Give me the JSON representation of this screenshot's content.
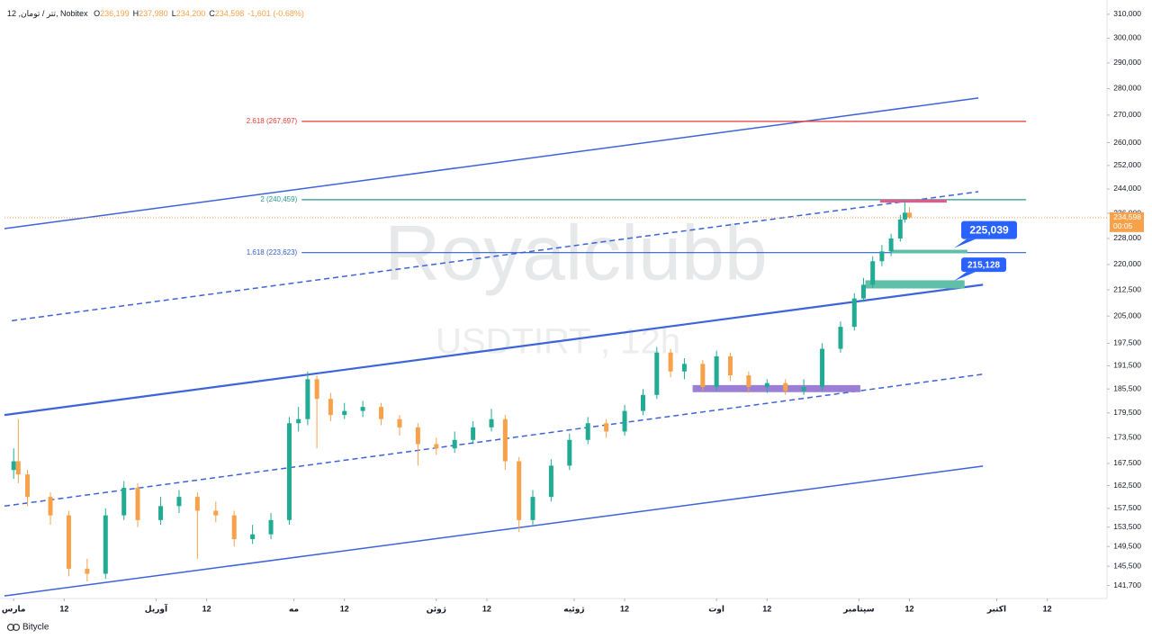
{
  "chart_data": {
    "type": "candlestick",
    "symbol": "تتر / تومان, 12, Nobitex",
    "ohlc": [
      {
        "key": "O",
        "value": "236,199"
      },
      {
        "key": "H",
        "value": "237,980"
      },
      {
        "key": "L",
        "value": "234,200"
      },
      {
        "key": "C",
        "value": "234,598"
      }
    ],
    "change": "-1,601 (-0.68%)",
    "watermark": "Royalclubb",
    "watermark_sub": "USDTIRT , 12h",
    "footer": "Bitycle",
    "log_scale": true,
    "up_color": "#22ab94",
    "down_color": "#f7a24b",
    "ylim": [
      139200,
      314200
    ],
    "xlim": [
      -2,
      238
    ],
    "yticks": [
      {
        "value": 310000,
        "label": "310,000"
      },
      {
        "value": 300000,
        "label": "300,000"
      },
      {
        "value": 290000,
        "label": "290,000"
      },
      {
        "value": 280000,
        "label": "280,000"
      },
      {
        "value": 270000,
        "label": "270,000"
      },
      {
        "value": 260000,
        "label": "260,000"
      },
      {
        "value": 252000,
        "label": "252,000"
      },
      {
        "value": 244000,
        "label": "244,000"
      },
      {
        "value": 236000,
        "label": "236,000"
      },
      {
        "value": 228000,
        "label": "228,000"
      },
      {
        "value": 220000,
        "label": "220,000"
      },
      {
        "value": 212500,
        "label": "212,500"
      },
      {
        "value": 205000,
        "label": "205,000"
      },
      {
        "value": 197500,
        "label": "197,500"
      },
      {
        "value": 191500,
        "label": "191,500"
      },
      {
        "value": 185500,
        "label": "185,500"
      },
      {
        "value": 179500,
        "label": "179,500"
      },
      {
        "value": 173500,
        "label": "173,500"
      },
      {
        "value": 167500,
        "label": "167,500"
      },
      {
        "value": 162500,
        "label": "162,500"
      },
      {
        "value": 157500,
        "label": "157,500"
      },
      {
        "value": 153500,
        "label": "153,500"
      },
      {
        "value": 149500,
        "label": "149,500"
      },
      {
        "value": 145500,
        "label": "145,500"
      },
      {
        "value": 141700,
        "label": "141,700"
      }
    ],
    "xticks": [
      {
        "value": 0,
        "label": "مارس"
      },
      {
        "value": 11,
        "label": "12"
      },
      {
        "value": 31,
        "label": "آوریل"
      },
      {
        "value": 42,
        "label": "12"
      },
      {
        "value": 61,
        "label": "مه"
      },
      {
        "value": 72,
        "label": "12"
      },
      {
        "value": 92,
        "label": "ژوئن"
      },
      {
        "value": 103,
        "label": "12"
      },
      {
        "value": 122,
        "label": "ژوئیه"
      },
      {
        "value": 133,
        "label": "12"
      },
      {
        "value": 153,
        "label": "اوت"
      },
      {
        "value": 164,
        "label": "12"
      },
      {
        "value": 184,
        "label": "سپتامبر"
      },
      {
        "value": 195,
        "label": "12"
      },
      {
        "value": 214,
        "label": "اکتبر"
      },
      {
        "value": 225,
        "label": "12"
      }
    ],
    "x": [
      0,
      1,
      3,
      8,
      12,
      16,
      20,
      24,
      27,
      32,
      36,
      40,
      44,
      48,
      52,
      56,
      60,
      62,
      64,
      66,
      69,
      72,
      76,
      80,
      84,
      88,
      92,
      96,
      100,
      104,
      107,
      110,
      113,
      117,
      121,
      125,
      129,
      133,
      137,
      140,
      143,
      146,
      150,
      153,
      156,
      160,
      164,
      168,
      172,
      176,
      180,
      183,
      185,
      187,
      189,
      191,
      193,
      194,
      195
    ],
    "open": [
      166000,
      168000,
      165000,
      160000,
      156000,
      145000,
      144000,
      156000,
      162000,
      155000,
      158000,
      160000,
      157000,
      156000,
      151000,
      152000,
      155000,
      177000,
      178000,
      188000,
      183000,
      179000,
      180000,
      181000,
      178000,
      176000,
      172000,
      171000,
      173000,
      176000,
      178000,
      168000,
      155000,
      160000,
      167000,
      173000,
      177000,
      175000,
      180000,
      184000,
      195000,
      190000,
      192000,
      186000,
      194000,
      189000,
      186000,
      187000,
      185000,
      186000,
      196000,
      202000,
      210000,
      214000,
      221000,
      224000,
      228000,
      234000,
      236199
    ],
    "high": [
      171000,
      178000,
      166000,
      161000,
      157000,
      147000,
      157500,
      163500,
      163000,
      160000,
      161500,
      161000,
      159000,
      157000,
      154000,
      156500,
      178500,
      181000,
      190000,
      189000,
      184500,
      182000,
      182500,
      182000,
      179000,
      177000,
      173500,
      175000,
      177500,
      180500,
      179000,
      169000,
      161500,
      168500,
      174500,
      178500,
      178000,
      181500,
      185500,
      196500,
      196000,
      193500,
      193000,
      195500,
      195000,
      190000,
      188000,
      188000,
      188000,
      197500,
      203500,
      211500,
      216000,
      222500,
      226000,
      229500,
      235500,
      240300,
      237980
    ],
    "low": [
      164000,
      163000,
      158000,
      154000,
      143500,
      142500,
      143000,
      155000,
      153500,
      154000,
      156500,
      147000,
      154500,
      149500,
      150000,
      151000,
      154000,
      175000,
      176500,
      171000,
      177500,
      178000,
      178500,
      176500,
      174000,
      167000,
      169500,
      170000,
      172000,
      175000,
      166000,
      152500,
      154000,
      159000,
      166000,
      172000,
      173500,
      174000,
      179000,
      183000,
      188500,
      188000,
      185000,
      185000,
      187500,
      184500,
      184500,
      184000,
      184000,
      185000,
      195000,
      201000,
      209000,
      213000,
      219500,
      222500,
      227000,
      233000,
      234200
    ],
    "close": [
      168000,
      165000,
      160000,
      156000,
      145000,
      144000,
      156000,
      162000,
      155000,
      158000,
      160000,
      157000,
      156000,
      151000,
      152000,
      155000,
      177000,
      178000,
      188000,
      183000,
      179000,
      180000,
      181000,
      178000,
      176000,
      172000,
      171000,
      173000,
      176000,
      178000,
      168000,
      155000,
      160000,
      167000,
      173000,
      177000,
      175000,
      180000,
      184000,
      195000,
      190000,
      192000,
      186000,
      194000,
      189000,
      186000,
      187000,
      185000,
      186000,
      196000,
      202000,
      210000,
      214000,
      221000,
      224000,
      228000,
      234000,
      236199,
      234598
    ],
    "current": {
      "value": 234598,
      "label": "234,598",
      "timer": "00:05",
      "color": "#f7a24b"
    },
    "fib_x": [
      62.7,
      220.4
    ],
    "fib_levels": [
      {
        "value": 267697,
        "label": "2.618 (267,697)",
        "color": "#e53935"
      },
      {
        "value": 240459,
        "label": "2 (240,459)",
        "color": "#26998a"
      },
      {
        "value": 223623,
        "label": "1.618 (223,623)",
        "color": "#2f5fd0"
      }
    ],
    "trendlines": [
      {
        "points": [
          [
            -2,
            231100
          ],
          [
            210,
            276400
          ]
        ],
        "dashed": false,
        "width": 1.5,
        "color": "#3d63d8"
      },
      {
        "points": [
          [
            -0.4,
            203700
          ],
          [
            210,
            243100
          ]
        ],
        "dashed": true,
        "width": 1.5,
        "color": "#3d63d8"
      },
      {
        "points": [
          [
            -2,
            179000
          ],
          [
            211,
            214000
          ]
        ],
        "dashed": false,
        "width": 2.2,
        "color": "#3d63d8"
      },
      {
        "points": [
          [
            -2,
            158000
          ],
          [
            211,
            189300
          ]
        ],
        "dashed": true,
        "width": 1.5,
        "color": "#3d63d8"
      },
      {
        "points": [
          [
            -2,
            139700
          ],
          [
            211,
            166900
          ]
        ],
        "dashed": false,
        "width": 1.5,
        "color": "#3d63d8"
      }
    ],
    "zones": [
      {
        "x": [
          188.6,
          203.1
        ],
        "y": [
          239500,
          240500
        ],
        "color": "#e05a8c"
      },
      {
        "x": [
          190.9,
          207.6
        ],
        "y": [
          223400,
          224500
        ],
        "color": "#5fbfa8"
      },
      {
        "x": [
          185.4,
          207
        ],
        "y": [
          212900,
          215300
        ],
        "color": "#5fbfa8"
      },
      {
        "x": [
          147.8,
          184.3
        ],
        "y": [
          184700,
          186500
        ],
        "color": "#9b7fd4"
      }
    ],
    "callouts": [
      {
        "label": "225,039",
        "value": 225039,
        "x": 204.7
      },
      {
        "label": "215,128",
        "value": 215128,
        "x": 204.7
      }
    ]
  }
}
